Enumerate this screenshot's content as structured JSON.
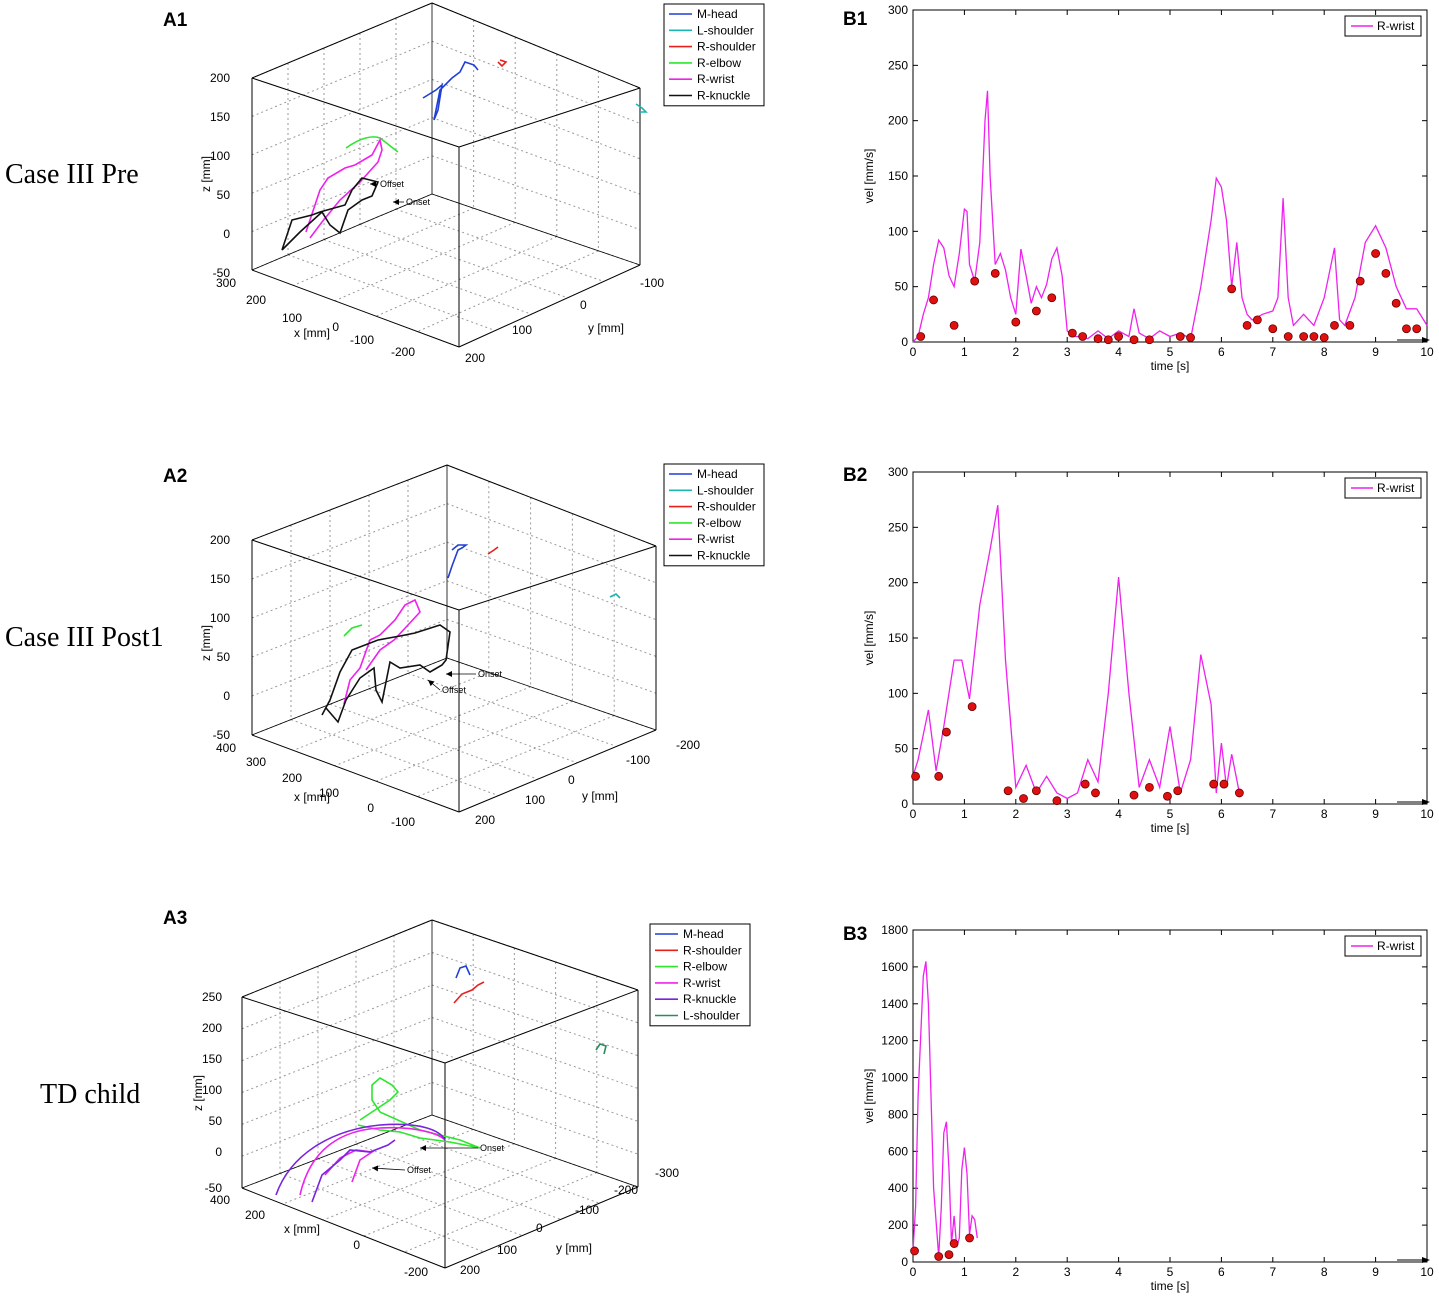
{
  "row_labels": [
    "Case III Pre",
    "Case III Post1",
    "TD child"
  ],
  "chart_data": [
    {
      "id": "A1",
      "type": "line3d",
      "panel_label": "A1",
      "xlabel": "x [mm]",
      "ylabel": "y [mm]",
      "zlabel": "z [mm]",
      "x_ticks": [
        "300",
        "200",
        "100",
        "0",
        "-100",
        "-200"
      ],
      "y_ticks": [
        "200",
        "100",
        "0",
        "-100"
      ],
      "z_ticks": [
        "200",
        "150",
        "100",
        "50",
        "0",
        "-50"
      ],
      "legend": [
        {
          "name": "M-head",
          "color": "#1f3fd6"
        },
        {
          "name": "L-shoulder",
          "color": "#1cb5b5"
        },
        {
          "name": "R-shoulder",
          "color": "#e8201c"
        },
        {
          "name": "R-elbow",
          "color": "#2ee62e"
        },
        {
          "name": "R-wrist",
          "color": "#ee22ee"
        },
        {
          "name": "R-knuckle",
          "color": "#111111"
        }
      ],
      "annotations": [
        "Offset",
        "Onset"
      ]
    },
    {
      "id": "A2",
      "type": "line3d",
      "panel_label": "A2",
      "xlabel": "x [mm]",
      "ylabel": "y [mm]",
      "zlabel": "z [mm]",
      "x_ticks": [
        "400",
        "300",
        "200",
        "100",
        "0",
        "-100"
      ],
      "y_ticks": [
        "200",
        "100",
        "0",
        "-100",
        "-200"
      ],
      "z_ticks": [
        "200",
        "150",
        "100",
        "50",
        "0",
        "-50"
      ],
      "legend": [
        {
          "name": "M-head",
          "color": "#1f3fd6"
        },
        {
          "name": "L-shoulder",
          "color": "#1cb5b5"
        },
        {
          "name": "R-shoulder",
          "color": "#e8201c"
        },
        {
          "name": "R-elbow",
          "color": "#2ee62e"
        },
        {
          "name": "R-wrist",
          "color": "#ee22ee"
        },
        {
          "name": "R-knuckle",
          "color": "#111111"
        }
      ],
      "annotations": [
        "Onset",
        "Offset"
      ]
    },
    {
      "id": "A3",
      "type": "line3d",
      "panel_label": "A3",
      "xlabel": "x [mm]",
      "ylabel": "y [mm]",
      "zlabel": "z [mm]",
      "x_ticks": [
        "400",
        "200",
        "0",
        "-200"
      ],
      "y_ticks": [
        "200",
        "100",
        "0",
        "-100",
        "-200",
        "-300"
      ],
      "z_ticks": [
        "250",
        "200",
        "150",
        "100",
        "50",
        "0",
        "-50"
      ],
      "legend": [
        {
          "name": "M-head",
          "color": "#1f3fd6"
        },
        {
          "name": "R-shoulder",
          "color": "#e8201c"
        },
        {
          "name": "R-elbow",
          "color": "#2ee62e"
        },
        {
          "name": "R-wrist",
          "color": "#ee22ee"
        },
        {
          "name": "R-knuckle",
          "color": "#7a22dd"
        },
        {
          "name": "L-shoulder",
          "color": "#2e8b5a"
        }
      ],
      "annotations": [
        "Onset",
        "Offset"
      ]
    },
    {
      "id": "B1",
      "type": "line",
      "panel_label": "B1",
      "xlabel": "time [s]",
      "ylabel": "vel [mm/s]",
      "xlim": [
        0,
        10
      ],
      "ylim": [
        0,
        300
      ],
      "x_ticks": [
        0,
        1,
        2,
        3,
        4,
        5,
        6,
        7,
        8,
        9,
        10
      ],
      "y_ticks": [
        0,
        50,
        100,
        150,
        200,
        250,
        300
      ],
      "series": [
        {
          "name": "R-wrist",
          "color": "#ee22ee",
          "x": [
            0,
            0.1,
            0.2,
            0.3,
            0.4,
            0.5,
            0.6,
            0.7,
            0.8,
            0.9,
            1.0,
            1.05,
            1.1,
            1.2,
            1.3,
            1.4,
            1.45,
            1.5,
            1.6,
            1.7,
            1.8,
            1.9,
            2.0,
            2.1,
            2.2,
            2.3,
            2.4,
            2.5,
            2.6,
            2.7,
            2.8,
            2.9,
            3.0,
            3.1,
            3.2,
            3.4,
            3.6,
            3.8,
            4.0,
            4.2,
            4.3,
            4.4,
            4.6,
            4.8,
            5.0,
            5.2,
            5.4,
            5.6,
            5.8,
            5.9,
            6.0,
            6.1,
            6.2,
            6.3,
            6.4,
            6.5,
            6.6,
            6.8,
            7.0,
            7.1,
            7.2,
            7.3,
            7.4,
            7.6,
            7.8,
            8.0,
            8.2,
            8.3,
            8.4,
            8.6,
            8.8,
            9.0,
            9.2,
            9.4,
            9.6,
            9.8,
            10.0
          ],
          "values": [
            0,
            5,
            25,
            40,
            70,
            92,
            85,
            60,
            50,
            80,
            120,
            118,
            70,
            55,
            90,
            200,
            227,
            150,
            70,
            80,
            65,
            40,
            25,
            84,
            60,
            35,
            50,
            40,
            52,
            75,
            85,
            60,
            10,
            5,
            5,
            3,
            10,
            3,
            10,
            5,
            30,
            8,
            3,
            10,
            5,
            8,
            3,
            50,
            110,
            148,
            140,
            110,
            50,
            90,
            40,
            25,
            20,
            25,
            28,
            40,
            130,
            40,
            15,
            25,
            15,
            40,
            85,
            20,
            15,
            40,
            90,
            105,
            85,
            50,
            30,
            30,
            15
          ],
          "markers_x": [
            0.15,
            0.4,
            0.8,
            1.2,
            1.6,
            2.0,
            2.4,
            2.7,
            3.1,
            3.3,
            3.6,
            3.8,
            4.0,
            4.3,
            4.6,
            5.2,
            5.4,
            6.2,
            6.5,
            6.7,
            7.0,
            7.3,
            7.6,
            7.8,
            8.0,
            8.2,
            8.5,
            8.7,
            9.0,
            9.2,
            9.4,
            9.6,
            9.8
          ],
          "markers_y": [
            5,
            38,
            15,
            55,
            62,
            18,
            28,
            40,
            8,
            5,
            3,
            2,
            5,
            2,
            2,
            5,
            4,
            48,
            15,
            20,
            12,
            5,
            5,
            5,
            4,
            15,
            15,
            55,
            80,
            62,
            35,
            12,
            12
          ]
        }
      ]
    },
    {
      "id": "B2",
      "type": "line",
      "panel_label": "B2",
      "xlabel": "time [s]",
      "ylabel": "vel [mm/s]",
      "xlim": [
        0,
        10
      ],
      "ylim": [
        0,
        300
      ],
      "x_ticks": [
        0,
        1,
        2,
        3,
        4,
        5,
        6,
        7,
        8,
        9,
        10
      ],
      "y_ticks": [
        0,
        50,
        100,
        150,
        200,
        250,
        300
      ],
      "series": [
        {
          "name": "R-wrist",
          "color": "#ee22ee",
          "x": [
            0,
            0.1,
            0.3,
            0.45,
            0.6,
            0.8,
            0.95,
            1.1,
            1.3,
            1.5,
            1.65,
            1.8,
            2.0,
            2.2,
            2.4,
            2.6,
            2.8,
            3.0,
            3.2,
            3.4,
            3.6,
            3.8,
            4.0,
            4.2,
            4.4,
            4.6,
            4.8,
            5.0,
            5.2,
            5.4,
            5.6,
            5.8,
            5.9,
            6.0,
            6.1,
            6.2,
            6.35
          ],
          "values": [
            25,
            40,
            85,
            30,
            70,
            130,
            130,
            95,
            180,
            230,
            270,
            130,
            15,
            35,
            10,
            25,
            10,
            5,
            10,
            40,
            20,
            100,
            205,
            100,
            15,
            40,
            15,
            70,
            10,
            40,
            135,
            90,
            10,
            55,
            15,
            45,
            10
          ],
          "markers_x": [
            0.05,
            0.5,
            0.65,
            1.15,
            1.85,
            2.15,
            2.4,
            2.8,
            3.35,
            3.55,
            4.3,
            4.6,
            4.95,
            5.15,
            5.85,
            6.05,
            6.35
          ],
          "markers_y": [
            25,
            25,
            65,
            88,
            12,
            5,
            12,
            3,
            18,
            10,
            8,
            15,
            7,
            12,
            18,
            18,
            10
          ]
        }
      ]
    },
    {
      "id": "B3",
      "type": "line",
      "panel_label": "B3",
      "xlabel": "time [s]",
      "ylabel": "vel [mm/s]",
      "xlim": [
        0,
        10
      ],
      "ylim": [
        0,
        1800
      ],
      "x_ticks": [
        0,
        1,
        2,
        3,
        4,
        5,
        6,
        7,
        8,
        9,
        10
      ],
      "y_ticks": [
        0,
        200,
        400,
        600,
        800,
        1000,
        1200,
        1400,
        1600,
        1800
      ],
      "series": [
        {
          "name": "R-wrist",
          "color": "#ee22ee",
          "x": [
            0,
            0.05,
            0.1,
            0.2,
            0.25,
            0.3,
            0.4,
            0.5,
            0.55,
            0.6,
            0.65,
            0.7,
            0.75,
            0.8,
            0.85,
            0.9,
            0.95,
            1.0,
            1.05,
            1.1,
            1.15,
            1.2,
            1.25
          ],
          "values": [
            60,
            300,
            900,
            1550,
            1630,
            1400,
            400,
            30,
            300,
            700,
            760,
            500,
            100,
            250,
            80,
            130,
            500,
            620,
            480,
            150,
            250,
            230,
            130
          ],
          "markers_x": [
            0.03,
            0.5,
            0.7,
            0.8,
            1.1
          ],
          "markers_y": [
            60,
            30,
            40,
            100,
            130
          ]
        }
      ]
    }
  ]
}
